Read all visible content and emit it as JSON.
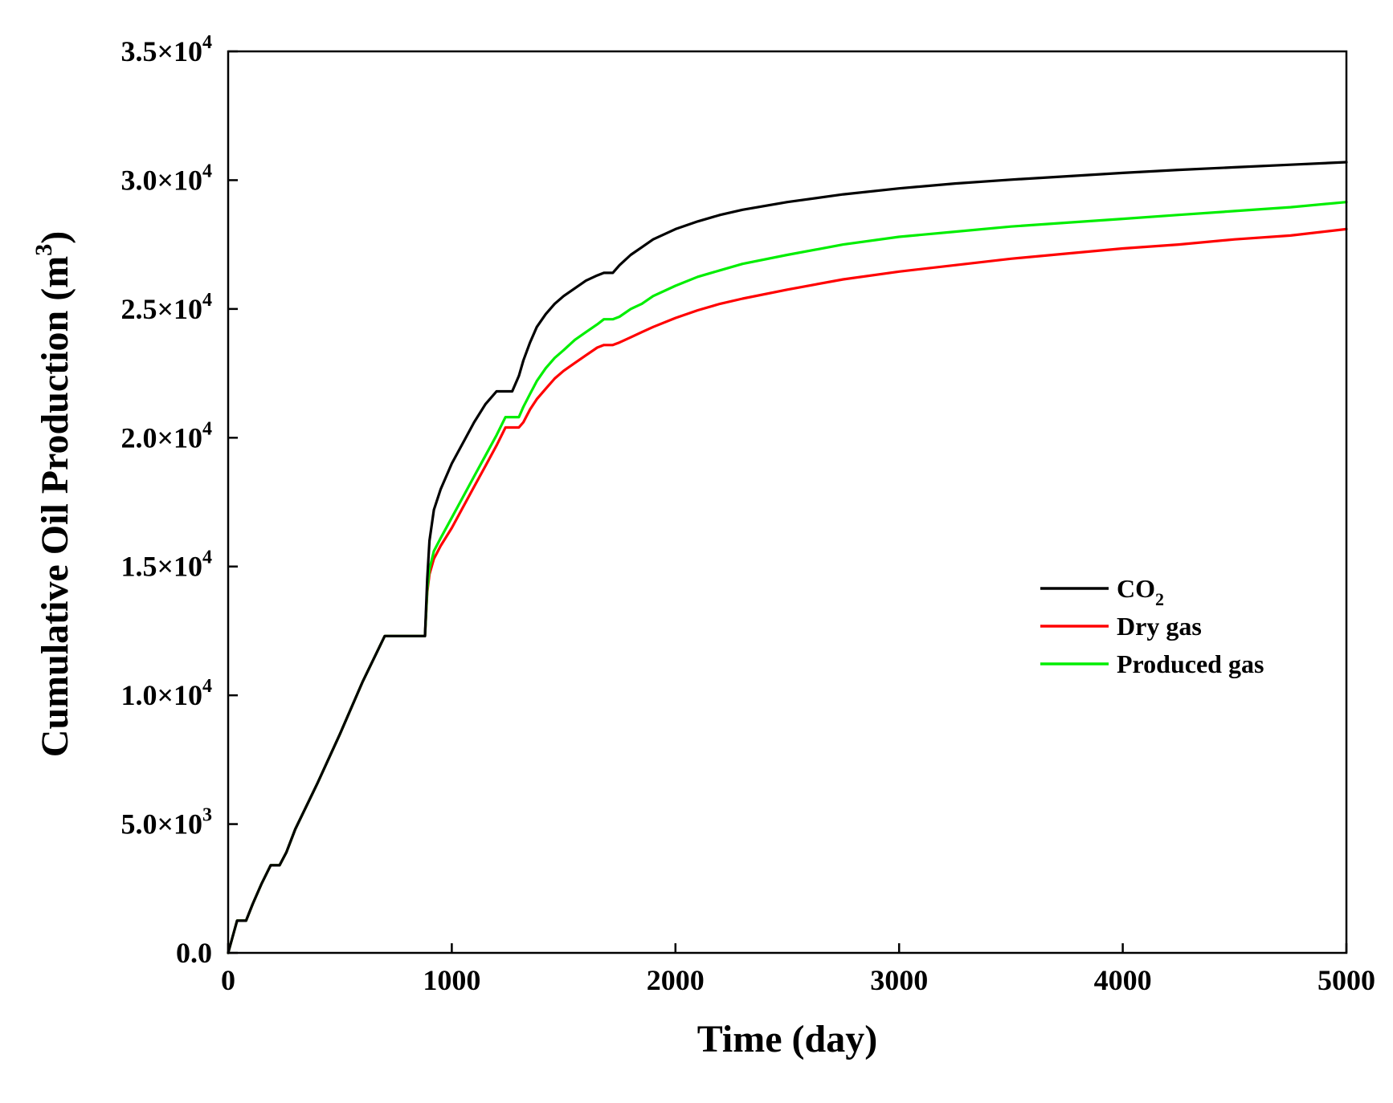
{
  "chart_data": {
    "type": "line",
    "title": "",
    "xlabel": "Time (day)",
    "ylabel": "Cumulative Oil Production (m3)",
    "ylabel_parts": {
      "text": "Cumulative Oil Production (m",
      "sup": "3",
      "tail": ")"
    },
    "xlim": [
      0,
      5000
    ],
    "ylim": [
      0,
      35000
    ],
    "grid": false,
    "legend_position": "center-right",
    "x_ticks": [
      {
        "value": 0,
        "label": "0"
      },
      {
        "value": 1000,
        "label": "1000"
      },
      {
        "value": 2000,
        "label": "2000"
      },
      {
        "value": 3000,
        "label": "3000"
      },
      {
        "value": 4000,
        "label": "4000"
      },
      {
        "value": 5000,
        "label": "5000"
      }
    ],
    "y_ticks": [
      {
        "value": 0,
        "mantissa": "0.0",
        "exp": ""
      },
      {
        "value": 5000,
        "mantissa": "5.0×10",
        "exp": "3"
      },
      {
        "value": 10000,
        "mantissa": "1.0×10",
        "exp": "4"
      },
      {
        "value": 15000,
        "mantissa": "1.5×10",
        "exp": "4"
      },
      {
        "value": 20000,
        "mantissa": "2.0×10",
        "exp": "4"
      },
      {
        "value": 25000,
        "mantissa": "2.5×10",
        "exp": "4"
      },
      {
        "value": 30000,
        "mantissa": "3.0×10",
        "exp": "4"
      },
      {
        "value": 35000,
        "mantissa": "3.5×10",
        "exp": "4"
      }
    ],
    "series": [
      {
        "name": "CO2",
        "label_main": "CO",
        "label_sub": "2",
        "color": "#000000",
        "x": [
          0,
          40,
          80,
          110,
          150,
          190,
          230,
          260,
          300,
          400,
          500,
          600,
          700,
          810,
          870,
          880,
          890,
          900,
          920,
          950,
          1000,
          1050,
          1100,
          1150,
          1200,
          1240,
          1270,
          1300,
          1320,
          1350,
          1380,
          1420,
          1460,
          1500,
          1550,
          1600,
          1650,
          1680,
          1700,
          1720,
          1750,
          1800,
          1850,
          1900,
          2000,
          2100,
          2200,
          2300,
          2500,
          2750,
          3000,
          3250,
          3500,
          3750,
          4000,
          4250,
          4500,
          4750,
          5000
        ],
        "y": [
          0,
          1250,
          1250,
          1900,
          2700,
          3400,
          3400,
          3900,
          4800,
          6600,
          8500,
          10500,
          12300,
          12300,
          12300,
          12300,
          14500,
          16000,
          17200,
          18000,
          19000,
          19800,
          20600,
          21300,
          21800,
          21800,
          21800,
          22400,
          23000,
          23700,
          24300,
          24800,
          25200,
          25500,
          25800,
          26100,
          26300,
          26400,
          26400,
          26400,
          26700,
          27100,
          27400,
          27700,
          28100,
          28400,
          28650,
          28850,
          29150,
          29450,
          29680,
          29870,
          30020,
          30150,
          30280,
          30400,
          30500,
          30600,
          30700
        ]
      },
      {
        "name": "Dry gas",
        "label_main": "Dry gas",
        "label_sub": "",
        "color": "#ff0000",
        "x": [
          0,
          40,
          80,
          110,
          150,
          190,
          230,
          260,
          300,
          400,
          500,
          600,
          700,
          810,
          870,
          880,
          890,
          900,
          920,
          950,
          1000,
          1050,
          1100,
          1150,
          1200,
          1240,
          1270,
          1300,
          1320,
          1350,
          1380,
          1420,
          1460,
          1500,
          1550,
          1600,
          1650,
          1680,
          1700,
          1720,
          1750,
          1800,
          1850,
          1900,
          2000,
          2100,
          2200,
          2300,
          2500,
          2750,
          3000,
          3250,
          3500,
          3750,
          4000,
          4250,
          4500,
          4750,
          5000
        ],
        "y": [
          0,
          1250,
          1250,
          1900,
          2700,
          3400,
          3400,
          3900,
          4800,
          6600,
          8500,
          10500,
          12300,
          12300,
          12300,
          12300,
          14000,
          14700,
          15300,
          15800,
          16500,
          17300,
          18100,
          18900,
          19700,
          20400,
          20400,
          20400,
          20600,
          21100,
          21500,
          21900,
          22300,
          22600,
          22900,
          23200,
          23500,
          23600,
          23600,
          23600,
          23700,
          23900,
          24100,
          24300,
          24650,
          24950,
          25200,
          25400,
          25750,
          26150,
          26450,
          26700,
          26950,
          27150,
          27350,
          27500,
          27700,
          27850,
          28100
        ]
      },
      {
        "name": "Produced gas",
        "label_main": "Produced gas",
        "label_sub": "",
        "color": "#00ee00",
        "x": [
          0,
          40,
          80,
          110,
          150,
          190,
          230,
          260,
          300,
          400,
          500,
          600,
          700,
          810,
          870,
          880,
          890,
          900,
          920,
          950,
          1000,
          1050,
          1100,
          1150,
          1200,
          1240,
          1270,
          1300,
          1320,
          1350,
          1380,
          1420,
          1460,
          1500,
          1550,
          1600,
          1650,
          1680,
          1700,
          1720,
          1750,
          1800,
          1850,
          1900,
          2000,
          2100,
          2200,
          2300,
          2500,
          2750,
          3000,
          3250,
          3500,
          3750,
          4000,
          4250,
          4500,
          4750,
          5000
        ],
        "y": [
          0,
          1250,
          1250,
          1900,
          2700,
          3400,
          3400,
          3900,
          4800,
          6600,
          8500,
          10500,
          12300,
          12300,
          12300,
          12300,
          14100,
          14900,
          15600,
          16100,
          16900,
          17700,
          18500,
          19300,
          20100,
          20800,
          20800,
          20800,
          21200,
          21700,
          22200,
          22700,
          23100,
          23400,
          23800,
          24100,
          24400,
          24600,
          24600,
          24600,
          24700,
          25000,
          25200,
          25500,
          25900,
          26250,
          26500,
          26750,
          27100,
          27500,
          27800,
          28000,
          28200,
          28350,
          28500,
          28650,
          28800,
          28950,
          29150
        ]
      }
    ]
  }
}
